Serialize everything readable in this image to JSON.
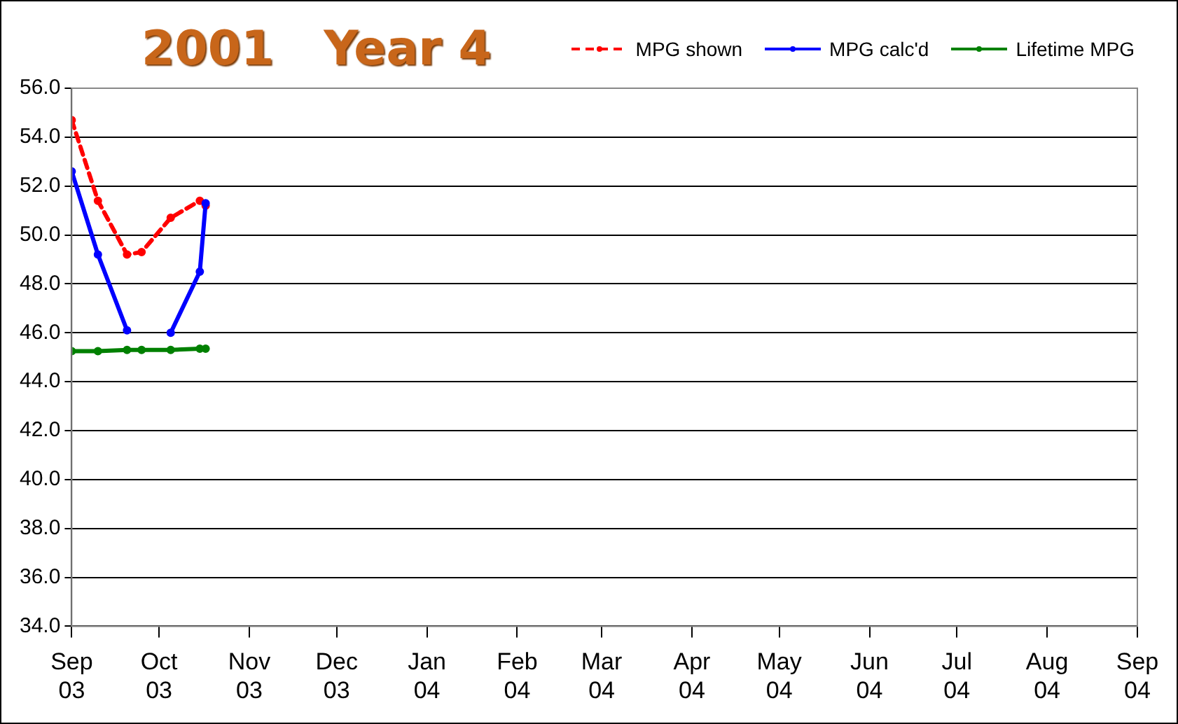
{
  "chart_data": {
    "type": "line",
    "title": "2001   Year 4",
    "x": [
      "2003-09-01",
      "2003-09-10",
      "2003-09-20",
      "2003-09-25",
      "2003-10-05",
      "2003-10-15",
      "2003-10-17"
    ],
    "series": [
      {
        "name": "MPG shown",
        "color": "#ff0000",
        "line_style": "dashed",
        "values": [
          54.7,
          51.4,
          49.2,
          49.3,
          50.7,
          51.4,
          51.2
        ]
      },
      {
        "name": "MPG calc'd",
        "color": "#0000ff",
        "line_style": "solid",
        "values": [
          52.6,
          49.2,
          46.1,
          null,
          46.0,
          48.5,
          51.3
        ]
      },
      {
        "name": "Lifetime MPG",
        "color": "#008000",
        "line_style": "solid",
        "values": [
          45.25,
          45.25,
          45.3,
          45.3,
          45.3,
          45.35,
          45.35
        ]
      }
    ],
    "xlim": [
      "2003-09-01",
      "2004-09-01"
    ],
    "xticks": [
      {
        "value": "2003-09-01",
        "label": "Sep 03"
      },
      {
        "value": "2003-10-01",
        "label": "Oct 03"
      },
      {
        "value": "2003-11-01",
        "label": "Nov 03"
      },
      {
        "value": "2003-12-01",
        "label": "Dec 03"
      },
      {
        "value": "2004-01-01",
        "label": "Jan 04"
      },
      {
        "value": "2004-02-01",
        "label": "Feb 04"
      },
      {
        "value": "2004-03-01",
        "label": "Mar 04"
      },
      {
        "value": "2004-04-01",
        "label": "Apr 04"
      },
      {
        "value": "2004-05-01",
        "label": "May 04"
      },
      {
        "value": "2004-06-01",
        "label": "Jun 04"
      },
      {
        "value": "2004-07-01",
        "label": "Jul 04"
      },
      {
        "value": "2004-08-01",
        "label": "Aug 04"
      },
      {
        "value": "2004-09-01",
        "label": "Sep 04"
      }
    ],
    "ylim": [
      34,
      56
    ],
    "yticks": [
      {
        "value": 34,
        "label": "34.0"
      },
      {
        "value": 36,
        "label": "36.0"
      },
      {
        "value": 38,
        "label": "38.0"
      },
      {
        "value": 40,
        "label": "40.0"
      },
      {
        "value": 42,
        "label": "42.0"
      },
      {
        "value": 44,
        "label": "44.0"
      },
      {
        "value": 46,
        "label": "46.0"
      },
      {
        "value": 48,
        "label": "48.0"
      },
      {
        "value": 50,
        "label": "50.0"
      },
      {
        "value": 52,
        "label": "52.0"
      },
      {
        "value": 54,
        "label": "54.0"
      },
      {
        "value": 56,
        "label": "56.0"
      }
    ],
    "grid": "y",
    "legend": "top right",
    "marker": "circle"
  }
}
